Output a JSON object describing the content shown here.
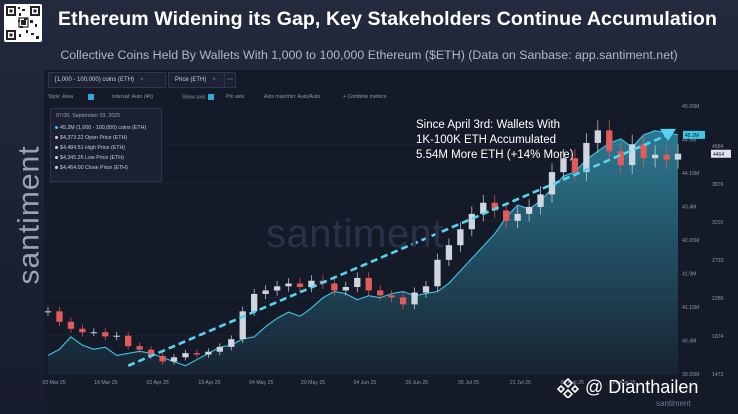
{
  "header": {
    "title": "Ethereum Widening its Gap, Key Stakeholders Continue Accumulation",
    "subtitle": "Collective Coins Held By Wallets With 1,000 to 100,000 Ethereum ($ETH) (Data on Sanbase: app.santiment.net)"
  },
  "brand": {
    "vertical": "santiment",
    "watermark": "santiment",
    "small": "santiment",
    "badge": "@ Dianthailen"
  },
  "tabs": [
    {
      "label": "[1,000 - 100,000) coins (ETH)"
    },
    {
      "label": "Price (ETH)"
    }
  ],
  "toolbar": {
    "style": "Style: Area",
    "interval": "Interval: Auto (4h)",
    "show_axis": "Show axis",
    "pin_axis": "Pin axis",
    "axis_max_min": "Axis max/min: Auto/Auto",
    "combine": "+ Combine metrics"
  },
  "tooltip": {
    "date": "07:00, September 03, 2025",
    "rows": [
      "45.2M (1,000 - 100,000) coins (ETH)",
      "$4,373.22 Open Price (ETH)",
      "$4,484.51 High Price (ETH)",
      "$4,345.26 Low Price (ETH)",
      "$4,464.00 Close Price (ETH)"
    ]
  },
  "annotation": {
    "lines": [
      "Since April 3rd: Wallets With",
      "1K-100K ETH Accumulated",
      "5.54M More ETH (+14% More)"
    ]
  },
  "colors": {
    "holdings": "#3fc7e6",
    "up": "#cfd6e0",
    "down": "#e25a5a",
    "trendline": "#55d4f2"
  },
  "chart_data": {
    "type": "line",
    "x_ticks": [
      "03 Mar 25",
      "19 Mar 25",
      "02 Apr 25",
      "19 Apr 25",
      "04 May 25",
      "20 May 25",
      "04 Jun 25",
      "20 Jun 25",
      "05 Jul 25",
      "21 Jul 25",
      "05 Aug 25",
      "21 Aug 25"
    ],
    "y_left_ticks": [
      "45.65M",
      "44.9M",
      "44.15M",
      "43.4M",
      "42.65M",
      "41.9M",
      "41.15M",
      "40.4M",
      "39.65M"
    ],
    "y_right_ticks": [
      "4584",
      "3876",
      "3201",
      "2733",
      "2286",
      "1874",
      "1472"
    ],
    "last_values": {
      "holdings": "45.2M",
      "price": "4464"
    },
    "series": [
      {
        "name": "[1,000 - 100,000) coins (ETH)",
        "axis": "left",
        "values": [
          39.85,
          40.0,
          40.3,
          40.1,
          40.0,
          40.05,
          39.85,
          39.9,
          39.95,
          39.9,
          39.8,
          39.7,
          39.6,
          39.75,
          39.9,
          40.05,
          40.1,
          40.25,
          40.3,
          40.55,
          40.75,
          40.9,
          40.8,
          41.0,
          41.25,
          41.4,
          41.35,
          41.2,
          41.3,
          41.25,
          41.35,
          41.4,
          41.3,
          41.35,
          41.4,
          41.6,
          41.9,
          42.2,
          42.5,
          42.8,
          43.2,
          43.5,
          43.4,
          43.6,
          43.9,
          44.2,
          44.3,
          44.6,
          44.8,
          45.0,
          45.1,
          44.9,
          45.2,
          45.3,
          45.25,
          45.2
        ]
      },
      {
        "name": "Price (ETH)",
        "axis": "right",
        "values": [
          2200,
          2050,
          1950,
          1900,
          1900,
          1840,
          1850,
          1700,
          1650,
          1560,
          1480,
          1540,
          1600,
          1580,
          1620,
          1690,
          1800,
          2200,
          2450,
          2500,
          2560,
          2600,
          2550,
          2640,
          2600,
          2500,
          2550,
          2680,
          2500,
          2430,
          2400,
          2300,
          2470,
          2560,
          2940,
          3150,
          3380,
          3600,
          3760,
          3650,
          3500,
          3600,
          3700,
          3880,
          4200,
          4400,
          4200,
          4620,
          4800,
          4500,
          4300,
          4600,
          4400,
          4450,
          4380,
          4464
        ]
      }
    ],
    "trendline": {
      "from": "02 Apr 25",
      "to": "03 Sep 25",
      "axis": "left",
      "values": [
        39.6,
        45.2
      ]
    }
  }
}
